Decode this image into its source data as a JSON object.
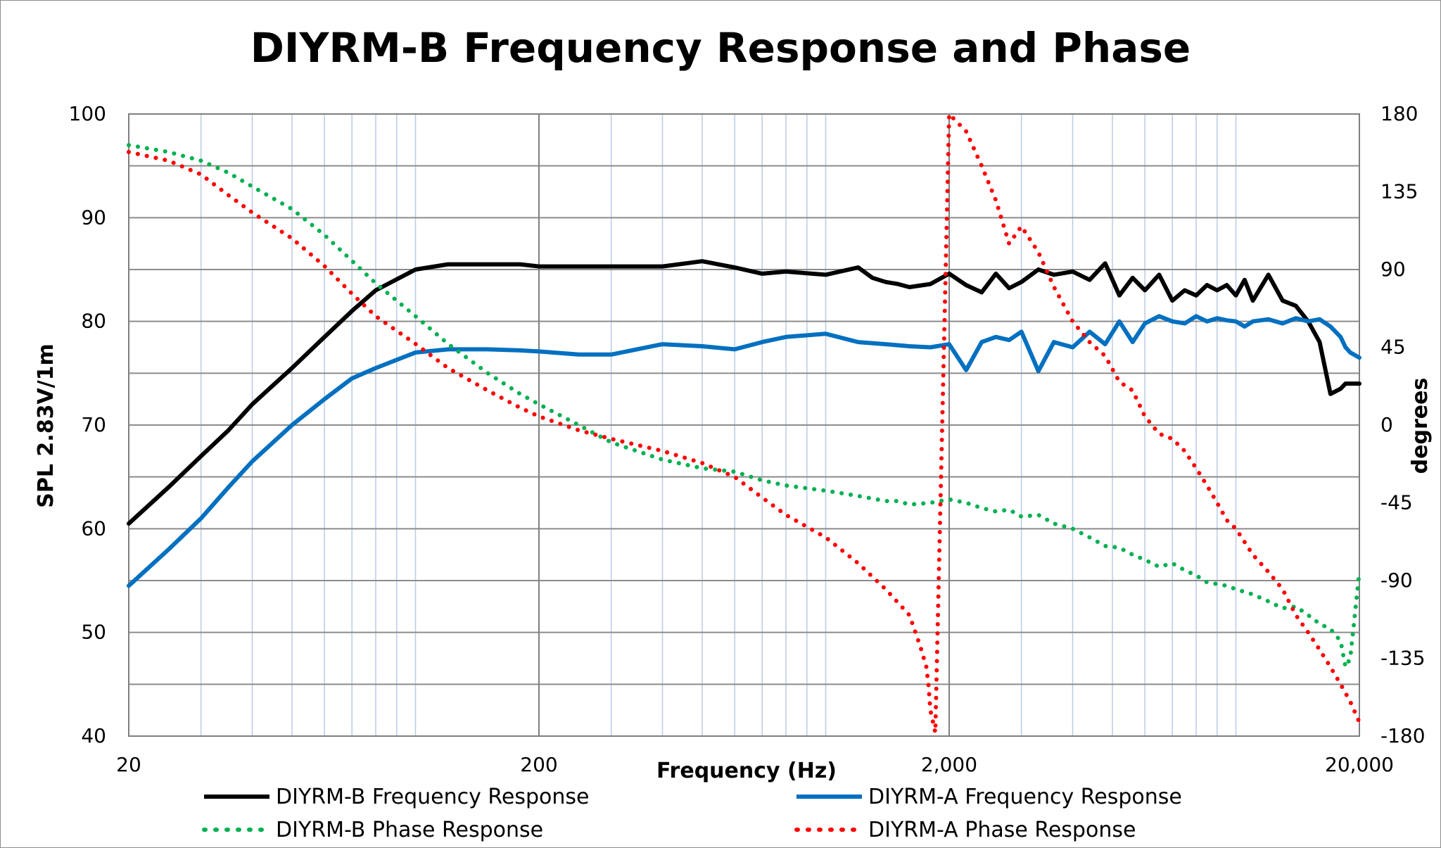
{
  "chart_data": {
    "type": "line",
    "title": "DIYRM-B Frequency Response and Phase",
    "xlabel": "Frequency (Hz)",
    "ylabel": "SPL 2.83V/1m",
    "y2label": "degrees",
    "x_scale": "log",
    "xlim": [
      20,
      20000
    ],
    "ylim": [
      40,
      100
    ],
    "y2lim": [
      -180,
      180
    ],
    "x_ticks": [
      20,
      200,
      2000,
      20000
    ],
    "x_tick_labels": [
      "20",
      "200",
      "2,000",
      "20,000"
    ],
    "y_ticks": [
      40,
      50,
      60,
      70,
      80,
      90,
      100
    ],
    "y_tick_labels": [
      "40",
      "50",
      "60",
      "70",
      "80",
      "90",
      "100"
    ],
    "y2_ticks": [
      -180,
      -135,
      -90,
      -45,
      0,
      45,
      90,
      135,
      180
    ],
    "y2_tick_labels": [
      "-180",
      "-135",
      "-90",
      "-45",
      "0",
      "45",
      "90",
      "135",
      "180"
    ],
    "grid": true,
    "legend_position": "bottom",
    "series": [
      {
        "name": "DIYRM-B Frequency Response",
        "axis": "left",
        "style": "solid",
        "color": "#000000",
        "x": [
          20,
          25,
          30,
          35,
          40,
          50,
          60,
          70,
          80,
          100,
          120,
          150,
          180,
          200,
          250,
          300,
          400,
          500,
          600,
          700,
          800,
          1000,
          1200,
          1300,
          1400,
          1500,
          1600,
          1800,
          2000,
          2200,
          2400,
          2600,
          2800,
          3000,
          3300,
          3600,
          4000,
          4400,
          4800,
          5200,
          5600,
          6000,
          6500,
          7000,
          7500,
          8000,
          8500,
          9000,
          9500,
          10000,
          10500,
          11000,
          12000,
          13000,
          14000,
          15000,
          16000,
          17000,
          18000,
          18500,
          19000,
          20000
        ],
        "y": [
          60.5,
          64,
          67,
          69.5,
          72,
          75.5,
          78.5,
          81,
          83,
          85,
          85.5,
          85.5,
          85.5,
          85.3,
          85.3,
          85.3,
          85.3,
          85.8,
          85.2,
          84.6,
          84.8,
          84.5,
          85.2,
          84.2,
          83.8,
          83.6,
          83.3,
          83.6,
          84.6,
          83.5,
          82.8,
          84.6,
          83.2,
          83.8,
          85,
          84.5,
          84.8,
          84,
          85.6,
          82.5,
          84.2,
          83,
          84.5,
          82,
          83,
          82.5,
          83.5,
          83,
          83.5,
          82.5,
          84,
          82,
          84.5,
          82,
          81.5,
          80,
          78,
          73,
          73.5,
          74,
          74,
          74
        ]
      },
      {
        "name": "DIYRM-A Frequency Response",
        "axis": "left",
        "style": "solid",
        "color": "#0070C0",
        "x": [
          20,
          25,
          30,
          35,
          40,
          50,
          60,
          70,
          80,
          100,
          120,
          150,
          180,
          200,
          250,
          300,
          400,
          500,
          600,
          700,
          800,
          1000,
          1200,
          1400,
          1600,
          1800,
          2000,
          2200,
          2400,
          2600,
          2800,
          3000,
          3300,
          3600,
          4000,
          4400,
          4800,
          5200,
          5600,
          6000,
          6500,
          7000,
          7500,
          8000,
          8500,
          9000,
          9500,
          10000,
          10500,
          11000,
          12000,
          13000,
          14000,
          15000,
          16000,
          17000,
          18000,
          18500,
          19000,
          20000
        ],
        "y": [
          54.5,
          58,
          61,
          64,
          66.5,
          70,
          72.5,
          74.5,
          75.5,
          77,
          77.3,
          77.3,
          77.2,
          77.1,
          76.8,
          76.8,
          77.8,
          77.6,
          77.3,
          78,
          78.5,
          78.8,
          78,
          77.8,
          77.6,
          77.5,
          77.8,
          75.3,
          78,
          78.5,
          78.2,
          79,
          75.2,
          78,
          77.5,
          79,
          77.8,
          80,
          78,
          79.8,
          80.5,
          80,
          79.8,
          80.5,
          80,
          80.3,
          80.1,
          80,
          79.5,
          80,
          80.2,
          79.8,
          80.3,
          80,
          80.2,
          79.5,
          78.5,
          77.5,
          77,
          76.5
        ]
      },
      {
        "name": "DIYRM-B Phase Response",
        "axis": "right",
        "style": "dotted",
        "color": "#00B050",
        "x": [
          20,
          25,
          30,
          35,
          40,
          50,
          60,
          70,
          80,
          100,
          120,
          150,
          180,
          200,
          250,
          300,
          400,
          500,
          600,
          700,
          800,
          1000,
          1200,
          1400,
          1500,
          1600,
          1800,
          2000,
          2200,
          2400,
          2600,
          2800,
          3000,
          3300,
          3600,
          4000,
          4400,
          4800,
          5200,
          5600,
          6000,
          6500,
          7000,
          7500,
          8000,
          8500,
          9000,
          9500,
          10000,
          11000,
          12000,
          13000,
          14000,
          15000,
          16000,
          17000,
          18000,
          18500,
          19000,
          20000
        ],
        "y": [
          162,
          158,
          153,
          146,
          138,
          125,
          110,
          95,
          82,
          63,
          47,
          30,
          18,
          12,
          0,
          -10,
          -20,
          -25,
          -27,
          -32,
          -35,
          -38,
          -41,
          -44,
          -44,
          -46,
          -45,
          -43,
          -45,
          -48,
          -50,
          -49,
          -53,
          -52,
          -57,
          -60,
          -65,
          -70,
          -71,
          -75,
          -78,
          -82,
          -80,
          -84,
          -87,
          -91,
          -92,
          -93,
          -95,
          -98,
          -102,
          -106,
          -105,
          -110,
          -115,
          -118,
          -125,
          -140,
          -135,
          -85
        ]
      },
      {
        "name": "DIYRM-A Phase Response",
        "axis": "right",
        "style": "dotted",
        "color": "#FF0000",
        "x": [
          20,
          25,
          30,
          35,
          40,
          50,
          60,
          70,
          80,
          100,
          120,
          150,
          180,
          200,
          250,
          300,
          400,
          500,
          600,
          700,
          800,
          1000,
          1200,
          1400,
          1600,
          1700,
          1760,
          1780,
          1800,
          1850,
          2000,
          2200,
          2400,
          2600,
          2800,
          3000,
          3300,
          3600,
          4000,
          4400,
          4800,
          5200,
          5600,
          6000,
          6500,
          7000,
          7500,
          8000,
          8500,
          9000,
          9500,
          10000,
          11000,
          12000,
          13000,
          14000,
          15000,
          16000,
          17000,
          18000,
          19000,
          20000
        ],
        "y": [
          158,
          153,
          145,
          133,
          123,
          108,
          92,
          76,
          63,
          47,
          33,
          20,
          10,
          5,
          -3,
          -8,
          -15,
          -22,
          -30,
          -42,
          -52,
          -65,
          -80,
          -95,
          -110,
          -128,
          -140,
          -150,
          -165,
          -178,
          180,
          170,
          150,
          130,
          105,
          115,
          100,
          80,
          60,
          48,
          40,
          25,
          20,
          5,
          -5,
          -8,
          -15,
          -25,
          -35,
          -45,
          -55,
          -60,
          -75,
          -85,
          -95,
          -110,
          -120,
          -130,
          -140,
          -150,
          -160,
          -172
        ]
      }
    ]
  }
}
